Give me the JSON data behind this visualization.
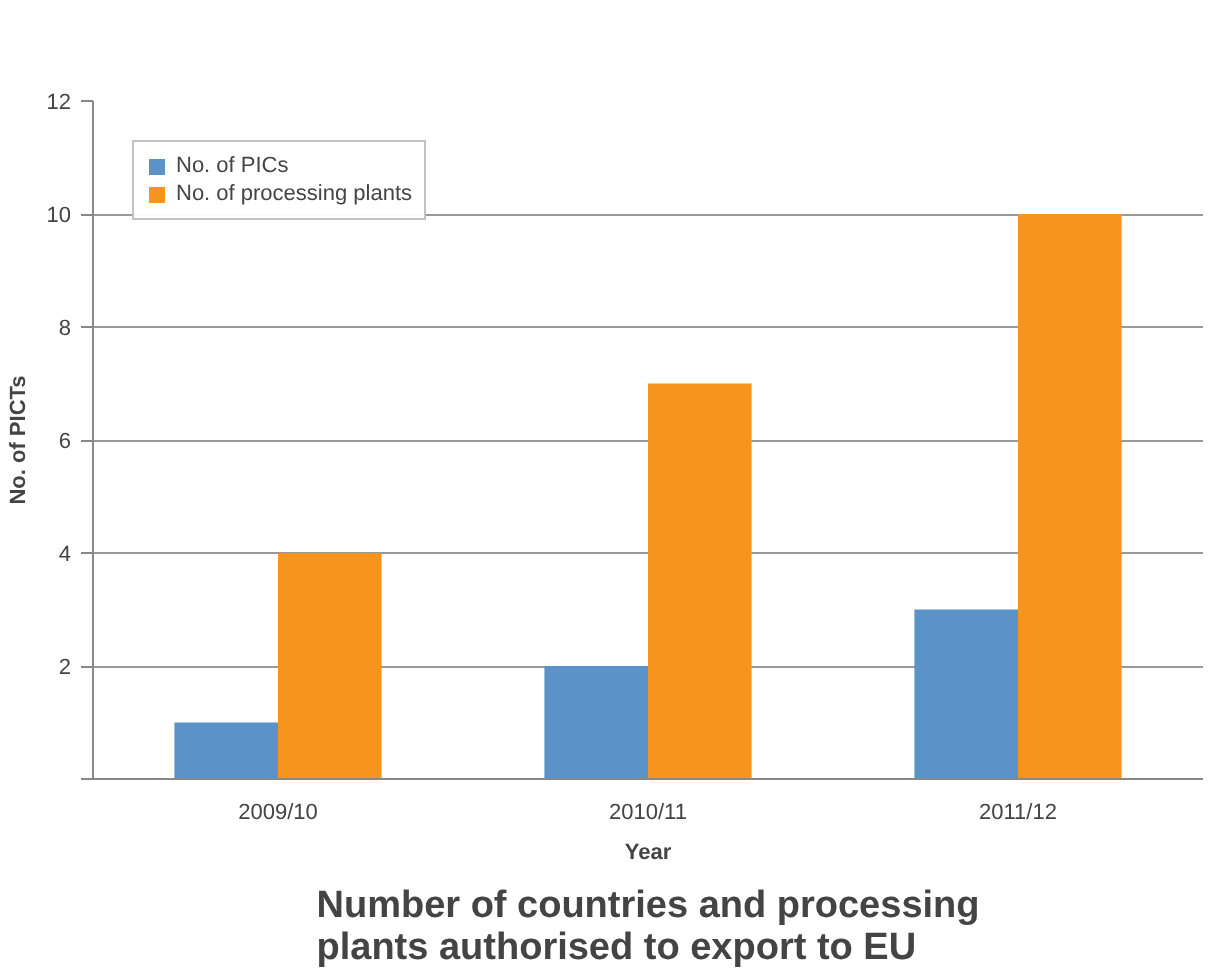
{
  "chart_data": {
    "type": "bar",
    "title": "Number of countries and processing plants authorised to export to EU",
    "xlabel": "Year",
    "ylabel": "No. of PICTs",
    "categories": [
      "2009/10",
      "2010/11",
      "2011/12"
    ],
    "series": [
      {
        "name": "No. of PICs",
        "color": "#5b93c9",
        "values": [
          1,
          2,
          3
        ]
      },
      {
        "name": "No. of processing plants",
        "color": "#f7941d",
        "values": [
          4,
          7,
          10
        ]
      }
    ],
    "ylim": [
      0,
      12
    ],
    "yticks": [
      {
        "value": 0,
        "label": null
      },
      2,
      4,
      6,
      8,
      10,
      12
    ],
    "grid": "y",
    "legend": "top left"
  }
}
